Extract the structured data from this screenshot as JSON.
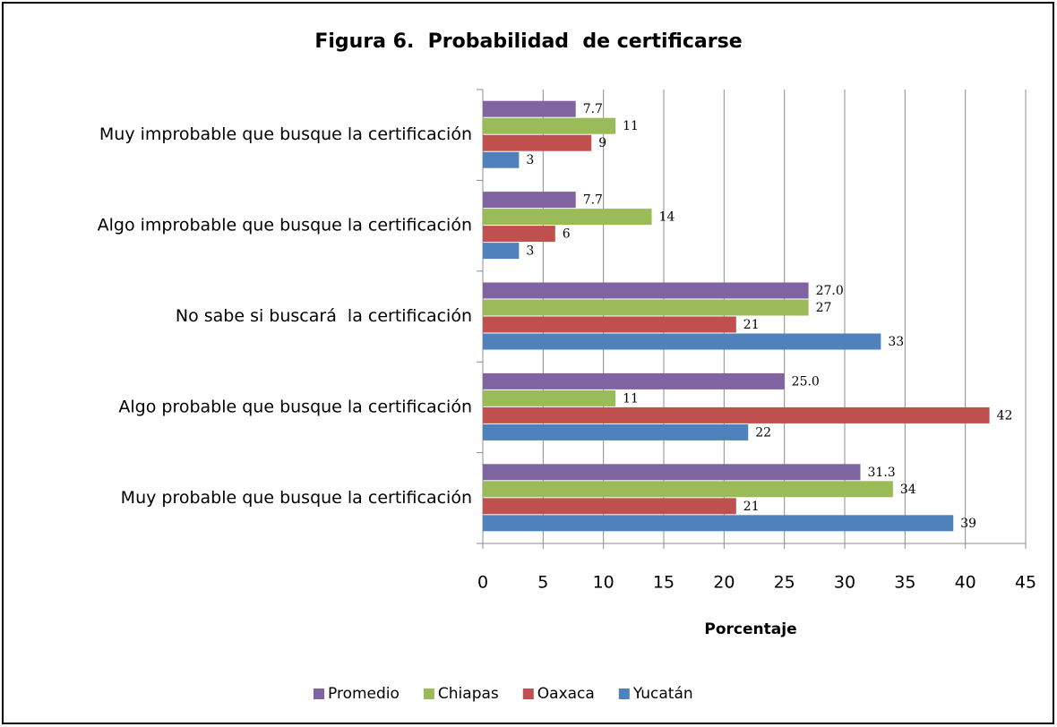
{
  "chart_data": {
    "type": "hbar",
    "title": "Figura 6.  Probabilidad  de certificarse",
    "x_label": "Porcentaje",
    "categories": [
      "Muy improbable que busque la certificación",
      "Algo improbable que busque la certificación",
      "No sabe si buscará  la certificación",
      "Algo probable que busque la certificación",
      "Muy probable que busque la certificación"
    ],
    "series": [
      {
        "name": "Promedio",
        "color": "#8064a2",
        "values": [
          7.7,
          7.7,
          27.0,
          25.0,
          31.3
        ],
        "value_labels": [
          "7.7",
          "7.7",
          "27.0",
          "25.0",
          "31.3"
        ]
      },
      {
        "name": "Chiapas",
        "color": "#9bbb59",
        "values": [
          11,
          14,
          27,
          11,
          34
        ]
      },
      {
        "name": "Oaxaca",
        "color": "#c0504d",
        "values": [
          9,
          6,
          21,
          42,
          21
        ]
      },
      {
        "name": "Yucatán",
        "color": "#4f81bd",
        "values": [
          3,
          3,
          33,
          22,
          39
        ]
      }
    ],
    "xlim": [
      0,
      45
    ],
    "xticks": [
      0,
      5,
      10,
      15,
      20,
      25,
      30,
      35,
      40,
      45
    ],
    "grid": true,
    "legend": "bottom"
  }
}
